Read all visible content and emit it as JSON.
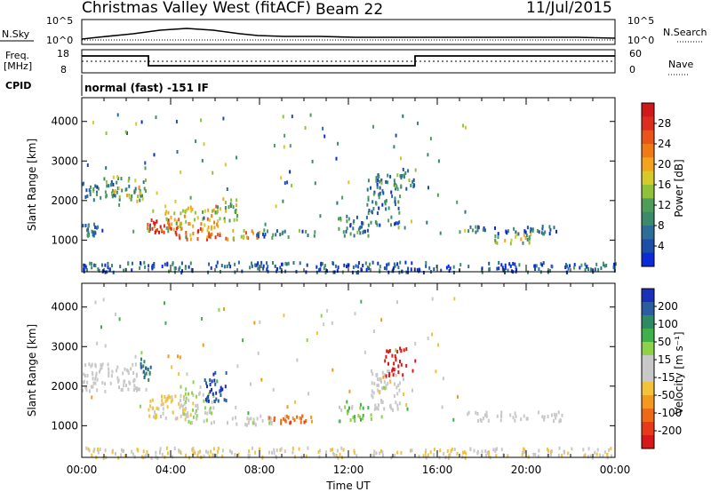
{
  "header": {
    "title": "Christmas Valley West (fitACF)",
    "beam": "Beam 22",
    "date": "11/Jul/2015"
  },
  "top_panels": {
    "nsky_label": "N.Sky",
    "nsky_ticks": [
      "10^5",
      "10^0"
    ],
    "nsearch_label": "N.Search",
    "nsearch_ticks": [
      "10^5",
      "10^0"
    ],
    "freq_label": "Freq.",
    "freq_unit": "[MHz]",
    "freq_ticks": [
      "18",
      "8"
    ],
    "nave_label": "Nave",
    "nave_ticks": [
      "60",
      "0"
    ],
    "cpid_label": "CPID",
    "cpid_text": "normal (fast) -151 IF"
  },
  "chart_data": [
    {
      "type": "heatmap",
      "name": "power",
      "ylabel": "Slant Range [km]",
      "yticks": [
        1000,
        2000,
        3000,
        4000
      ],
      "ylim": [
        200,
        4600
      ],
      "xlim": [
        0,
        24
      ],
      "colorbar": {
        "label": "Power [dB]",
        "ticks": [
          4,
          8,
          12,
          16,
          20,
          24,
          28
        ],
        "colors": [
          "#0a2bd6",
          "#1d4fa8",
          "#2d6e99",
          "#3c8a6c",
          "#4e9d5a",
          "#8fc23a",
          "#d6c92a",
          "#f2a51c",
          "#f07a16",
          "#e8541a",
          "#dc2d1e",
          "#d01a1a"
        ]
      },
      "bands": [
        {
          "t0": 0.0,
          "t1": 1.6,
          "r0": 2100,
          "r1": 2600,
          "value": 10
        },
        {
          "t0": 0.0,
          "t1": 0.7,
          "r0": 1150,
          "r1": 1450,
          "value": 9
        },
        {
          "t0": 1.3,
          "t1": 2.9,
          "r0": 1900,
          "r1": 2650,
          "value": 14
        },
        {
          "t0": 2.9,
          "t1": 4.2,
          "r0": 1200,
          "r1": 1550,
          "value": 26
        },
        {
          "t0": 3.7,
          "t1": 6.2,
          "r0": 1300,
          "r1": 1900,
          "value": 18
        },
        {
          "t0": 4.2,
          "t1": 6.6,
          "r0": 1050,
          "r1": 1350,
          "value": 22
        },
        {
          "t0": 6.0,
          "t1": 7.0,
          "r0": 1500,
          "r1": 2100,
          "value": 15
        },
        {
          "t0": 6.4,
          "t1": 8.0,
          "r0": 1050,
          "r1": 1300,
          "value": 19
        },
        {
          "t0": 7.8,
          "t1": 10.5,
          "r0": 1100,
          "r1": 1300,
          "value": 9
        },
        {
          "t0": 11.5,
          "t1": 13.0,
          "r0": 1150,
          "r1": 1650,
          "value": 10
        },
        {
          "t0": 12.8,
          "t1": 14.3,
          "r0": 1400,
          "r1": 2700,
          "value": 9
        },
        {
          "t0": 14.0,
          "t1": 15.0,
          "r0": 2300,
          "r1": 3000,
          "value": 11
        },
        {
          "t0": 17.3,
          "t1": 21.8,
          "r0": 1200,
          "r1": 1400,
          "value": 8
        },
        {
          "t0": 18.3,
          "t1": 20.2,
          "r0": 950,
          "r1": 1200,
          "value": 15
        },
        {
          "t0": 0.0,
          "t1": 24.0,
          "r0": 220,
          "r1": 480,
          "value": 7
        }
      ]
    },
    {
      "type": "heatmap",
      "name": "velocity",
      "ylabel": "Slant Range [km]",
      "yticks": [
        1000,
        2000,
        3000,
        4000
      ],
      "ylim": [
        200,
        4600
      ],
      "xlim": [
        0,
        24
      ],
      "xticks": [
        "00:00",
        "04:00",
        "08:00",
        "12:00",
        "16:00",
        "20:00",
        "00:00"
      ],
      "xlabel": "Time UT",
      "colorbar": {
        "label": "Velocity [m s⁻¹]",
        "ticks": [
          200,
          100,
          50,
          15,
          -15,
          -50,
          -100,
          -200
        ],
        "colors": [
          "#1c2fb8",
          "#2a5ea0",
          "#2f8a64",
          "#3fb04a",
          "#8ed24a",
          "#c8c8c8",
          "#c8c8c8",
          "#f2c23a",
          "#f39a1e",
          "#ef6a16",
          "#e83a1a",
          "#d81818"
        ]
      },
      "bands": [
        {
          "t0": 0.0,
          "t1": 2.9,
          "r0": 1900,
          "r1": 2600,
          "value": 0
        },
        {
          "t0": 2.6,
          "t1": 3.1,
          "r0": 2200,
          "r1": 2800,
          "value": 150
        },
        {
          "t0": 2.9,
          "t1": 5.0,
          "r0": 1200,
          "r1": 1800,
          "value": -40
        },
        {
          "t0": 4.5,
          "t1": 6.0,
          "r0": 1100,
          "r1": 1900,
          "value": 30
        },
        {
          "t0": 5.5,
          "t1": 6.5,
          "r0": 1600,
          "r1": 2400,
          "value": 180
        },
        {
          "t0": 6.5,
          "t1": 8.6,
          "r0": 1050,
          "r1": 1300,
          "value": 25
        },
        {
          "t0": 8.4,
          "t1": 10.4,
          "r0": 1100,
          "r1": 1300,
          "value": -120
        },
        {
          "t0": 11.5,
          "t1": 13.0,
          "r0": 1150,
          "r1": 1650,
          "value": 60
        },
        {
          "t0": 13.0,
          "t1": 14.3,
          "r0": 1400,
          "r1": 2500,
          "value": 0
        },
        {
          "t0": 13.6,
          "t1": 15.0,
          "r0": 2300,
          "r1": 3000,
          "value": -220
        },
        {
          "t0": 17.3,
          "t1": 21.8,
          "r0": 1150,
          "r1": 1400,
          "value": 0
        },
        {
          "t0": 0.0,
          "t1": 24.0,
          "r0": 220,
          "r1": 480,
          "value": -30
        }
      ]
    }
  ]
}
